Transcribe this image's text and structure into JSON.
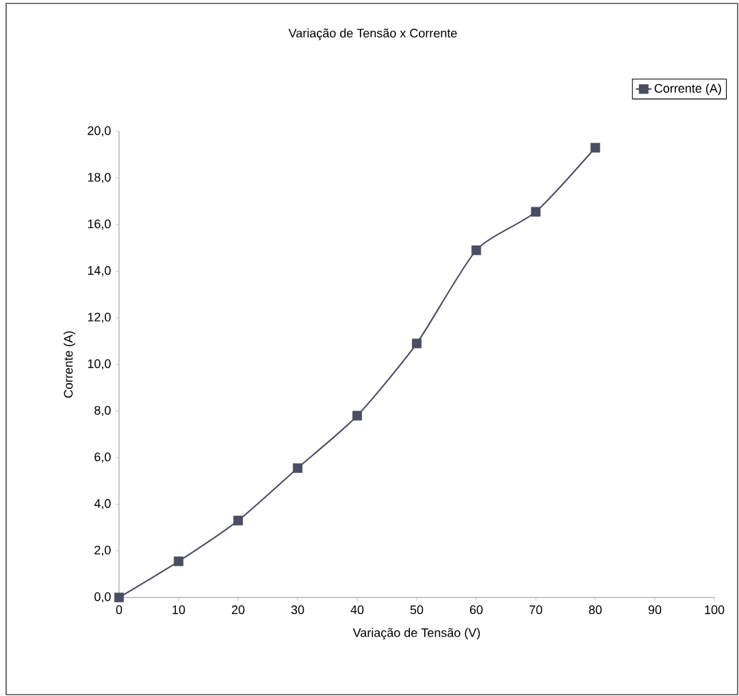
{
  "chart_data": {
    "type": "line",
    "title": "Variação de Tensão x Corrente",
    "xlabel": "Variação de Tensão (V)",
    "ylabel": "Corrente (A)",
    "x": [
      0,
      10,
      20,
      30,
      40,
      50,
      60,
      70,
      80
    ],
    "series": [
      {
        "name": "Corrente (A)",
        "color": "#4a4d63",
        "values": [
          0,
          1.55,
          3.3,
          5.55,
          7.8,
          10.9,
          14.9,
          16.55,
          19.3
        ]
      }
    ],
    "xlim": [
      0,
      100
    ],
    "ylim": [
      0,
      20
    ],
    "xticks": [
      0,
      10,
      20,
      30,
      40,
      50,
      60,
      70,
      80,
      90,
      100
    ],
    "yticks": [
      {
        "value": 0,
        "label": "0,0"
      },
      {
        "value": 2,
        "label": "2,0"
      },
      {
        "value": 4,
        "label": "4,0"
      },
      {
        "value": 6,
        "label": "6,0"
      },
      {
        "value": 8,
        "label": "8,0"
      },
      {
        "value": 10,
        "label": "10,0"
      },
      {
        "value": 12,
        "label": "12,0"
      },
      {
        "value": 14,
        "label": "14,0"
      },
      {
        "value": 16,
        "label": "16,0"
      },
      {
        "value": 18,
        "label": "18,0"
      },
      {
        "value": 20,
        "label": "20,0"
      }
    ],
    "grid": false,
    "legend": "top right",
    "marker": "square",
    "line_style": "solid"
  }
}
